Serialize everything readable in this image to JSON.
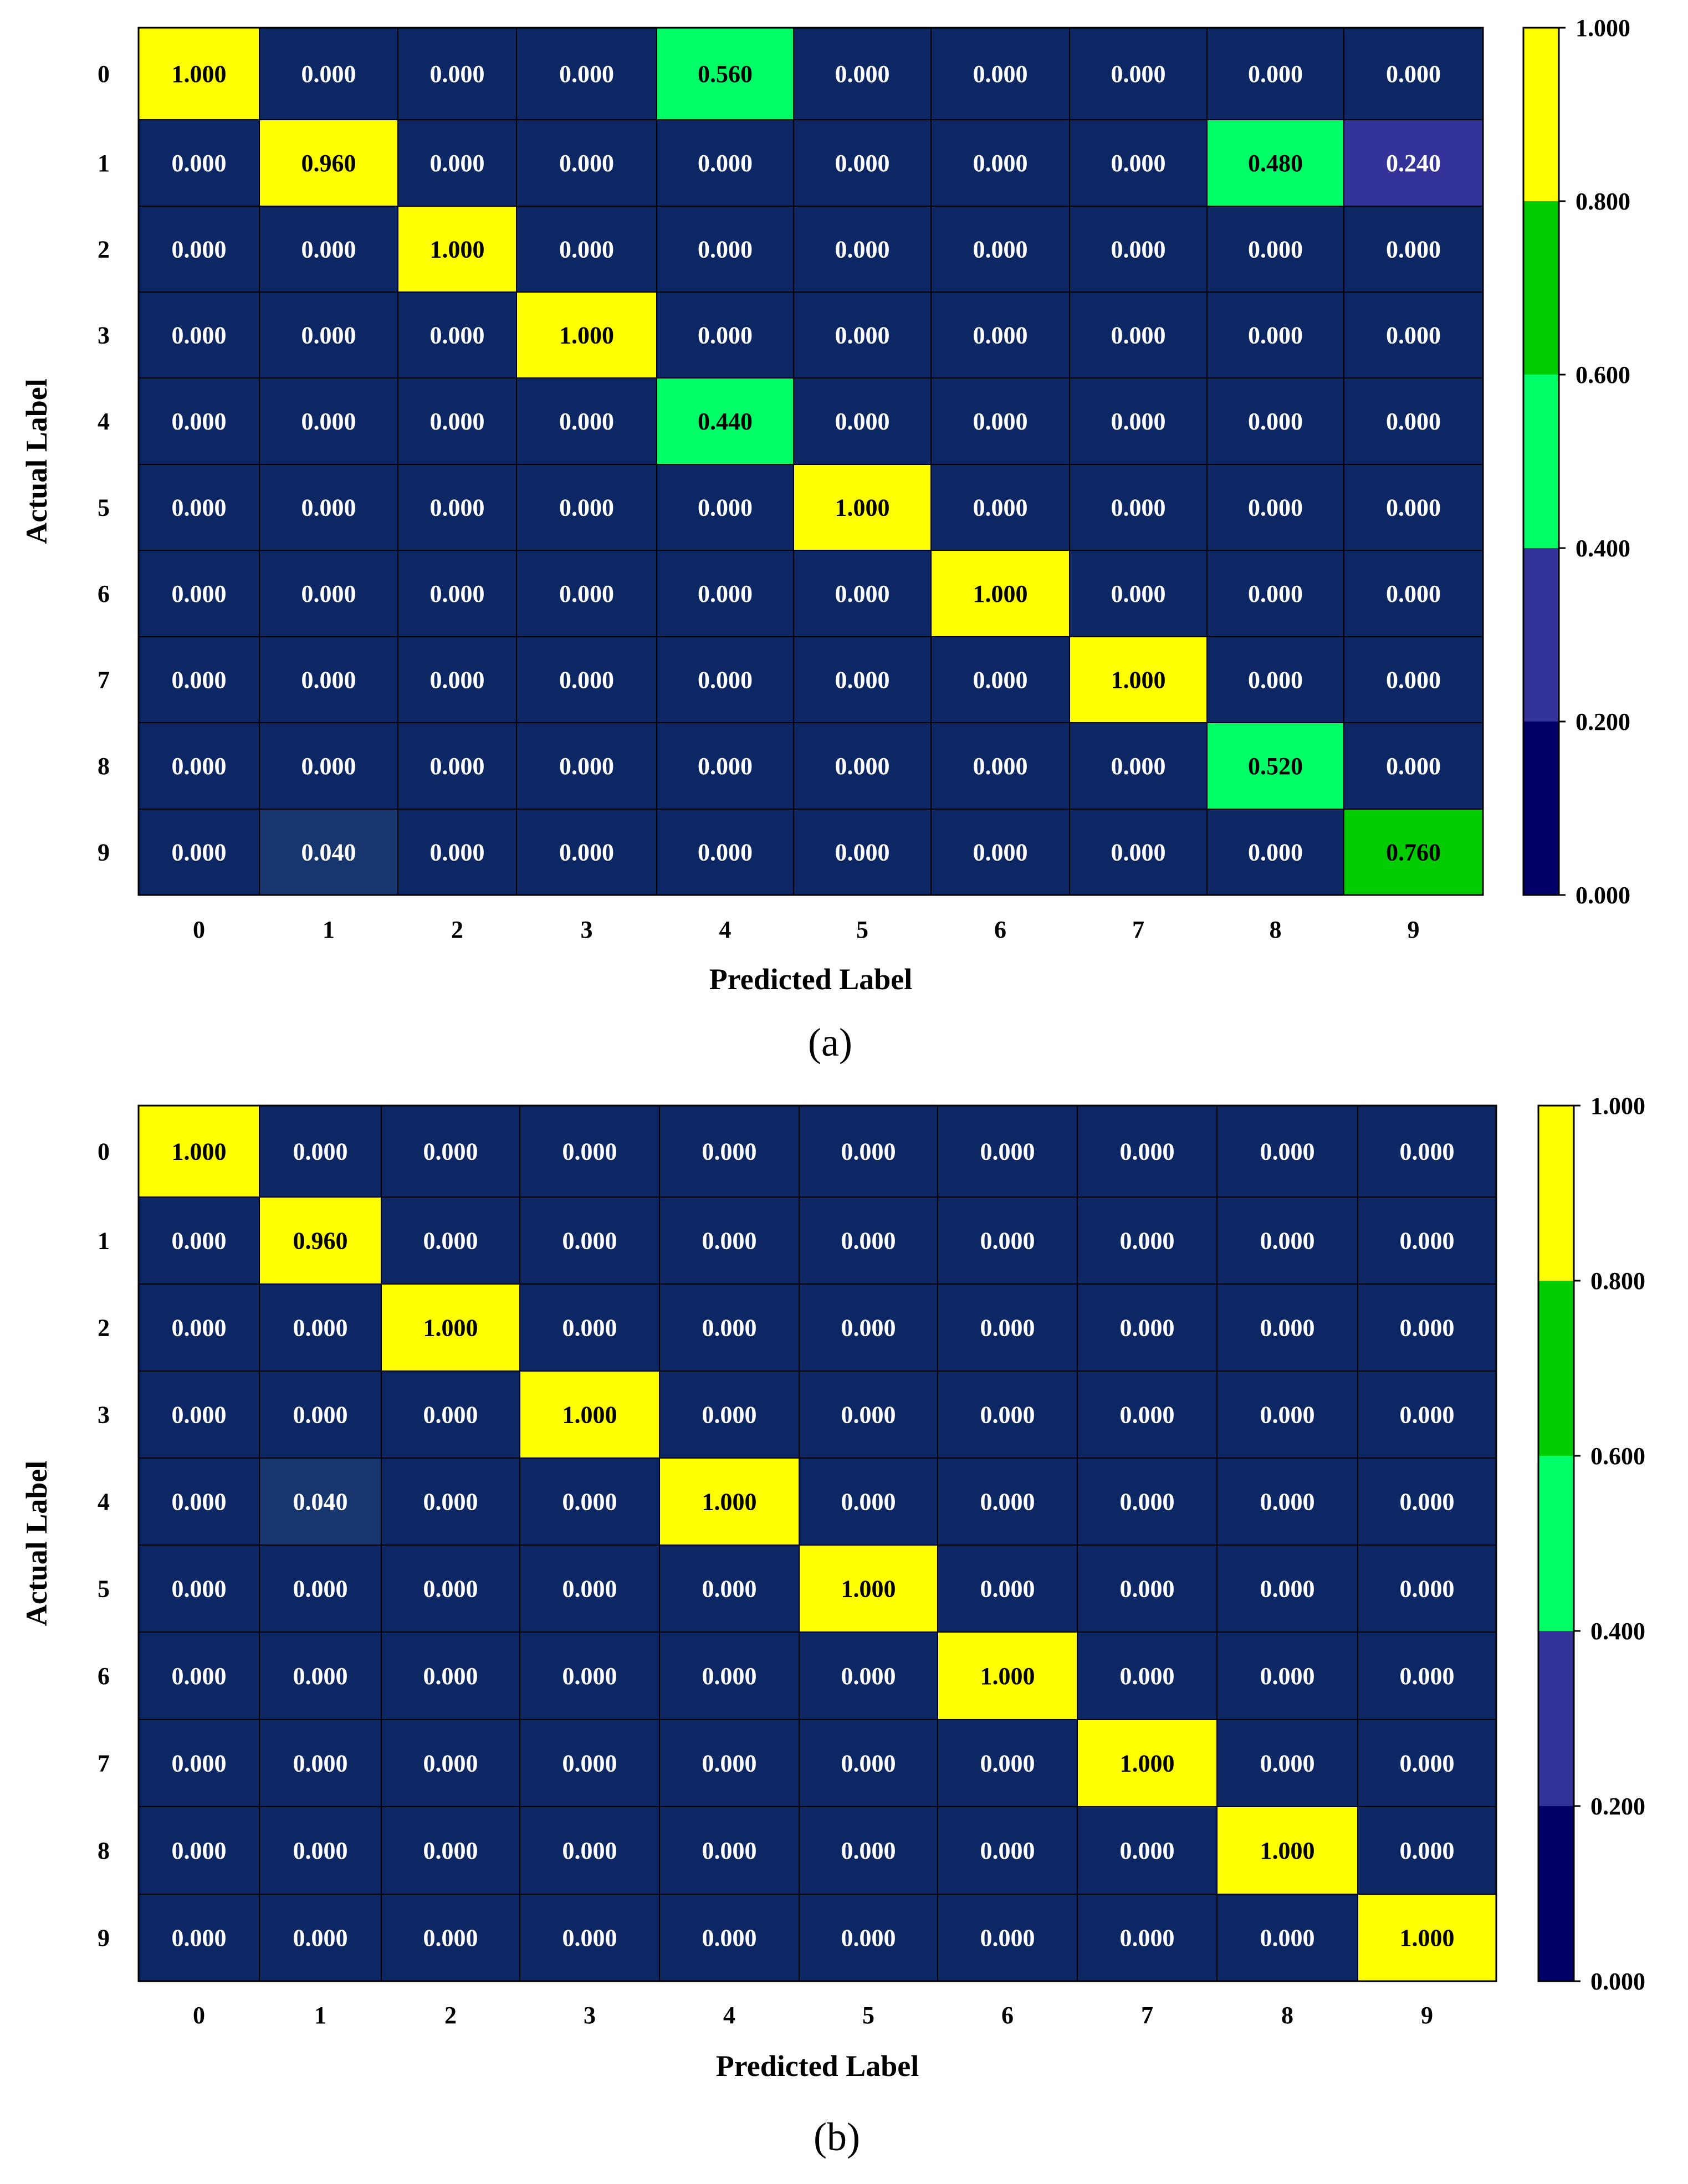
{
  "chart_data": [
    {
      "type": "heatmap",
      "panel_label": "(a)",
      "xlabel": "Predicted Label",
      "ylabel": "Actual Label",
      "x_categories": [
        "0",
        "1",
        "2",
        "3",
        "4",
        "5",
        "6",
        "7",
        "8",
        "9"
      ],
      "y_categories": [
        "0",
        "1",
        "2",
        "3",
        "4",
        "5",
        "6",
        "7",
        "8",
        "9"
      ],
      "values": [
        [
          1.0,
          0.0,
          0.0,
          0.0,
          0.56,
          0.0,
          0.0,
          0.0,
          0.0,
          0.0
        ],
        [
          0.0,
          0.96,
          0.0,
          0.0,
          0.0,
          0.0,
          0.0,
          0.0,
          0.48,
          0.24
        ],
        [
          0.0,
          0.0,
          1.0,
          0.0,
          0.0,
          0.0,
          0.0,
          0.0,
          0.0,
          0.0
        ],
        [
          0.0,
          0.0,
          0.0,
          1.0,
          0.0,
          0.0,
          0.0,
          0.0,
          0.0,
          0.0
        ],
        [
          0.0,
          0.0,
          0.0,
          0.0,
          0.44,
          0.0,
          0.0,
          0.0,
          0.0,
          0.0
        ],
        [
          0.0,
          0.0,
          0.0,
          0.0,
          0.0,
          1.0,
          0.0,
          0.0,
          0.0,
          0.0
        ],
        [
          0.0,
          0.0,
          0.0,
          0.0,
          0.0,
          0.0,
          1.0,
          0.0,
          0.0,
          0.0
        ],
        [
          0.0,
          0.0,
          0.0,
          0.0,
          0.0,
          0.0,
          0.0,
          1.0,
          0.0,
          0.0
        ],
        [
          0.0,
          0.0,
          0.0,
          0.0,
          0.0,
          0.0,
          0.0,
          0.0,
          0.52,
          0.0
        ],
        [
          0.0,
          0.04,
          0.0,
          0.0,
          0.0,
          0.0,
          0.0,
          0.0,
          0.0,
          0.76
        ]
      ],
      "value_labels": [
        [
          "1.000",
          "0.000",
          "0.000",
          "0.000",
          "0.560",
          "0.000",
          "0.000",
          "0.000",
          "0.000",
          "0.000"
        ],
        [
          "0.000",
          "0.960",
          "0.000",
          "0.000",
          "0.000",
          "0.000",
          "0.000",
          "0.000",
          "0.480",
          "0.240"
        ],
        [
          "0.000",
          "0.000",
          "1.000",
          "0.000",
          "0.000",
          "0.000",
          "0.000",
          "0.000",
          "0.000",
          "0.000"
        ],
        [
          "0.000",
          "0.000",
          "0.000",
          "1.000",
          "0.000",
          "0.000",
          "0.000",
          "0.000",
          "0.000",
          "0.000"
        ],
        [
          "0.000",
          "0.000",
          "0.000",
          "0.000",
          "0.440",
          "0.000",
          "0.000",
          "0.000",
          "0.000",
          "0.000"
        ],
        [
          "0.000",
          "0.000",
          "0.000",
          "0.000",
          "0.000",
          "1.000",
          "0.000",
          "0.000",
          "0.000",
          "0.000"
        ],
        [
          "0.000",
          "0.000",
          "0.000",
          "0.000",
          "0.000",
          "0.000",
          "1.000",
          "0.000",
          "0.000",
          "0.000"
        ],
        [
          "0.000",
          "0.000",
          "0.000",
          "0.000",
          "0.000",
          "0.000",
          "0.000",
          "1.000",
          "0.000",
          "0.000"
        ],
        [
          "0.000",
          "0.000",
          "0.000",
          "0.000",
          "0.000",
          "0.000",
          "0.000",
          "0.000",
          "0.520",
          "0.000"
        ],
        [
          "0.000",
          "0.040",
          "0.000",
          "0.000",
          "0.000",
          "0.000",
          "0.000",
          "0.000",
          "0.000",
          "0.760"
        ]
      ],
      "colorbar": {
        "range": [
          0,
          1
        ],
        "tick_values": [
          0,
          0.2,
          0.4,
          0.6,
          0.8,
          1.0
        ],
        "tick_labels": [
          "0.000",
          "0.200",
          "0.400",
          "0.600",
          "0.800",
          "1.000"
        ]
      }
    },
    {
      "type": "heatmap",
      "panel_label": "(b)",
      "xlabel": "Predicted Label",
      "ylabel": "Actual Label",
      "x_categories": [
        "0",
        "1",
        "2",
        "3",
        "4",
        "5",
        "6",
        "7",
        "8",
        "9"
      ],
      "y_categories": [
        "0",
        "1",
        "2",
        "3",
        "4",
        "5",
        "6",
        "7",
        "8",
        "9"
      ],
      "values": [
        [
          1.0,
          0.0,
          0.0,
          0.0,
          0.0,
          0.0,
          0.0,
          0.0,
          0.0,
          0.0
        ],
        [
          0.0,
          0.96,
          0.0,
          0.0,
          0.0,
          0.0,
          0.0,
          0.0,
          0.0,
          0.0
        ],
        [
          0.0,
          0.0,
          1.0,
          0.0,
          0.0,
          0.0,
          0.0,
          0.0,
          0.0,
          0.0
        ],
        [
          0.0,
          0.0,
          0.0,
          1.0,
          0.0,
          0.0,
          0.0,
          0.0,
          0.0,
          0.0
        ],
        [
          0.0,
          0.04,
          0.0,
          0.0,
          1.0,
          0.0,
          0.0,
          0.0,
          0.0,
          0.0
        ],
        [
          0.0,
          0.0,
          0.0,
          0.0,
          0.0,
          1.0,
          0.0,
          0.0,
          0.0,
          0.0
        ],
        [
          0.0,
          0.0,
          0.0,
          0.0,
          0.0,
          0.0,
          1.0,
          0.0,
          0.0,
          0.0
        ],
        [
          0.0,
          0.0,
          0.0,
          0.0,
          0.0,
          0.0,
          0.0,
          1.0,
          0.0,
          0.0
        ],
        [
          0.0,
          0.0,
          0.0,
          0.0,
          0.0,
          0.0,
          0.0,
          0.0,
          1.0,
          0.0
        ],
        [
          0.0,
          0.0,
          0.0,
          0.0,
          0.0,
          0.0,
          0.0,
          0.0,
          0.0,
          1.0
        ]
      ],
      "value_labels": [
        [
          "1.000",
          "0.000",
          "0.000",
          "0.000",
          "0.000",
          "0.000",
          "0.000",
          "0.000",
          "0.000",
          "0.000"
        ],
        [
          "0.000",
          "0.960",
          "0.000",
          "0.000",
          "0.000",
          "0.000",
          "0.000",
          "0.000",
          "0.000",
          "0.000"
        ],
        [
          "0.000",
          "0.000",
          "1.000",
          "0.000",
          "0.000",
          "0.000",
          "0.000",
          "0.000",
          "0.000",
          "0.000"
        ],
        [
          "0.000",
          "0.000",
          "0.000",
          "1.000",
          "0.000",
          "0.000",
          "0.000",
          "0.000",
          "0.000",
          "0.000"
        ],
        [
          "0.000",
          "0.040",
          "0.000",
          "0.000",
          "1.000",
          "0.000",
          "0.000",
          "0.000",
          "0.000",
          "0.000"
        ],
        [
          "0.000",
          "0.000",
          "0.000",
          "0.000",
          "0.000",
          "1.000",
          "0.000",
          "0.000",
          "0.000",
          "0.000"
        ],
        [
          "0.000",
          "0.000",
          "0.000",
          "0.000",
          "0.000",
          "0.000",
          "1.000",
          "0.000",
          "0.000",
          "0.000"
        ],
        [
          "0.000",
          "0.000",
          "0.000",
          "0.000",
          "0.000",
          "0.000",
          "0.000",
          "1.000",
          "0.000",
          "0.000"
        ],
        [
          "0.000",
          "0.000",
          "0.000",
          "0.000",
          "0.000",
          "0.000",
          "0.000",
          "0.000",
          "1.000",
          "0.000"
        ],
        [
          "0.000",
          "0.000",
          "0.000",
          "0.000",
          "0.000",
          "0.000",
          "0.000",
          "0.000",
          "0.000",
          "1.000"
        ]
      ],
      "colorbar": {
        "range": [
          0,
          1
        ],
        "tick_values": [
          0,
          0.2,
          0.4,
          0.6,
          0.8,
          1.0
        ],
        "tick_labels": [
          "0.000",
          "0.200",
          "0.400",
          "0.600",
          "0.800",
          "1.000"
        ]
      }
    }
  ],
  "colors": {
    "band_0_02": "#000066",
    "band_02_04": "#333399",
    "band_04_06": "#00ff66",
    "band_06_08": "#00cc00",
    "band_08_10": "#ffff00",
    "cell_base_near_zero": "#0c2763",
    "cell_border": "#000000",
    "text_on_dark": "#ffffff",
    "text_on_light": "#000000"
  }
}
